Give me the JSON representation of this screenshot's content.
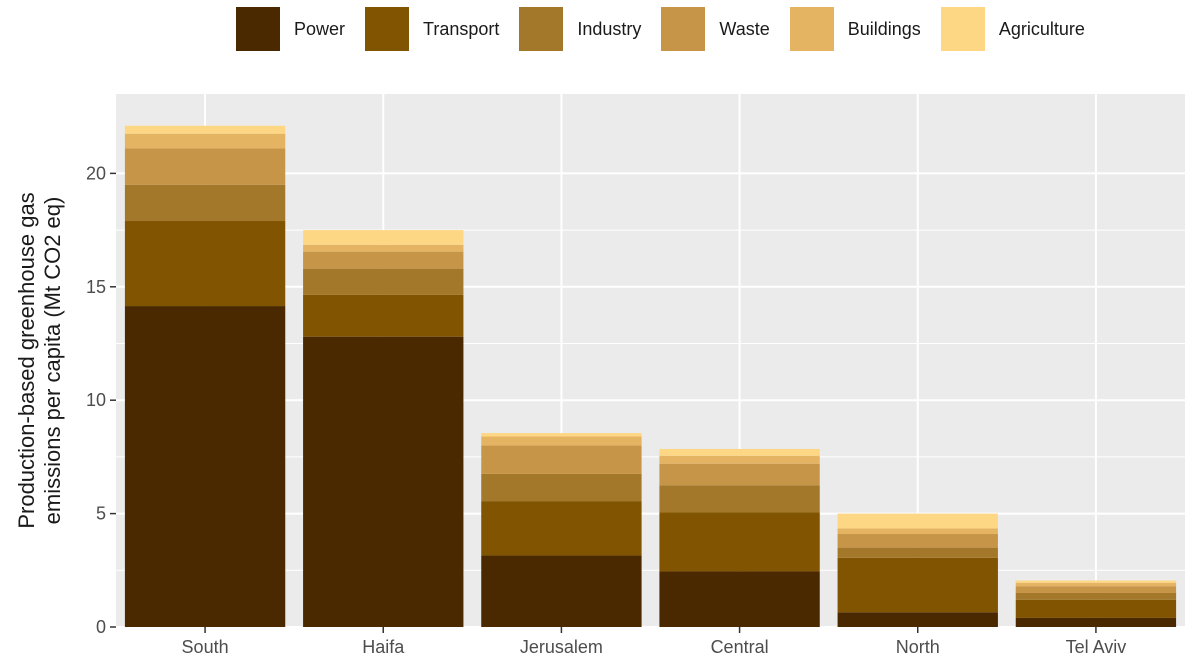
{
  "chart_data": {
    "type": "bar",
    "stacked": true,
    "categories": [
      "South",
      "Haifa",
      "Jerusalem",
      "Central",
      "North",
      "Tel Aviv"
    ],
    "series": [
      {
        "name": "Power",
        "color": "#4A2900",
        "values": [
          14.15,
          12.8,
          3.15,
          2.45,
          0.65,
          0.4
        ]
      },
      {
        "name": "Transport",
        "color": "#805400",
        "values": [
          3.75,
          1.85,
          2.4,
          2.6,
          2.4,
          0.8
        ]
      },
      {
        "name": "Industry",
        "color": "#A3782A",
        "values": [
          1.6,
          1.15,
          1.2,
          1.2,
          0.45,
          0.3
        ]
      },
      {
        "name": "Waste",
        "color": "#C79548",
        "values": [
          1.6,
          0.75,
          1.25,
          0.95,
          0.6,
          0.3
        ]
      },
      {
        "name": "Buildings",
        "color": "#E5B462",
        "values": [
          0.65,
          0.3,
          0.4,
          0.35,
          0.25,
          0.15
        ]
      },
      {
        "name": "Agriculture",
        "color": "#FED784",
        "values": [
          0.35,
          0.65,
          0.15,
          0.3,
          0.65,
          0.1
        ]
      }
    ],
    "ylabel_lines": [
      "Production-based greenhouse gas",
      "emissions per capita (Mt CO2 eq)"
    ],
    "xlabel": "",
    "ylim": [
      0,
      23.5
    ],
    "yticks": [
      0,
      5,
      10,
      15,
      20
    ],
    "grid": true,
    "legend_position": "top"
  }
}
